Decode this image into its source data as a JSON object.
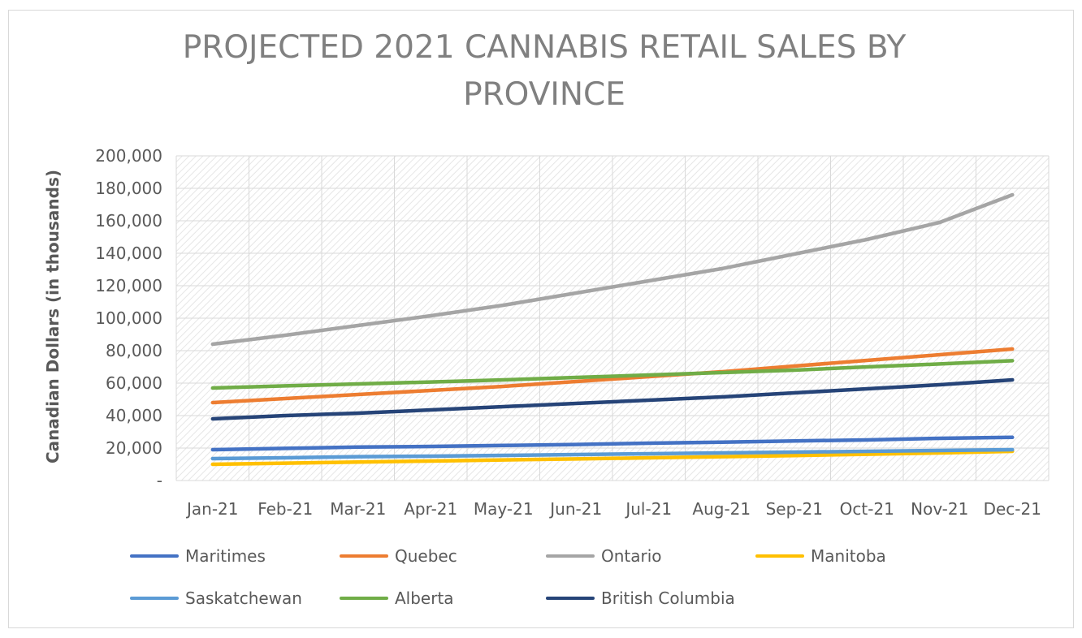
{
  "chart_data": {
    "type": "line",
    "title": "PROJECTED 2021 CANNABIS RETAIL SALES BY PROVINCE",
    "xlabel": "",
    "ylabel": "Canadian Dollars (in thousands)",
    "ylim": [
      0,
      200000
    ],
    "y_ticks": [
      0,
      20000,
      40000,
      60000,
      80000,
      100000,
      120000,
      140000,
      160000,
      180000,
      200000
    ],
    "y_tick_labels": [
      "-",
      "20,000",
      "40,000",
      "60,000",
      "80,000",
      "100,000",
      "120,000",
      "140,000",
      "160,000",
      "180,000",
      "200,000"
    ],
    "grid": true,
    "legend_position": "bottom",
    "categories": [
      "Jan-21",
      "Feb-21",
      "Mar-21",
      "Apr-21",
      "May-21",
      "Jun-21",
      "Jul-21",
      "Aug-21",
      "Sep-21",
      "Oct-21",
      "Nov-21",
      "Dec-21"
    ],
    "series": [
      {
        "name": "Maritimes",
        "color": "#4472c4",
        "values": [
          19000,
          19800,
          20600,
          21000,
          21600,
          22200,
          23000,
          23600,
          24400,
          25000,
          26000,
          26600
        ]
      },
      {
        "name": "Quebec",
        "color": "#ed7d31",
        "values": [
          48000,
          50500,
          53000,
          55500,
          58000,
          61000,
          64000,
          67000,
          70500,
          74000,
          77500,
          81000
        ]
      },
      {
        "name": "Ontario",
        "color": "#a5a5a5",
        "values": [
          84000,
          89500,
          95500,
          101500,
          108000,
          115500,
          123000,
          130500,
          139500,
          148500,
          159000,
          176000
        ]
      },
      {
        "name": "Manitoba",
        "color": "#ffc000",
        "values": [
          10000,
          10700,
          11400,
          12000,
          12700,
          13300,
          14000,
          14700,
          15400,
          16200,
          17000,
          18000
        ]
      },
      {
        "name": "Saskatchewan",
        "color": "#5b9bd5",
        "values": [
          13500,
          14000,
          14700,
          15000,
          15500,
          16000,
          16500,
          17000,
          17500,
          18000,
          18500,
          19000
        ]
      },
      {
        "name": "Alberta",
        "color": "#70ad47",
        "values": [
          57000,
          58300,
          59500,
          60700,
          62000,
          63500,
          65000,
          66500,
          68000,
          70000,
          71800,
          73800
        ]
      },
      {
        "name": "British Columbia",
        "color": "#264478",
        "values": [
          38000,
          40000,
          41500,
          43500,
          45500,
          47500,
          49500,
          51500,
          54000,
          56500,
          59000,
          62000
        ]
      }
    ]
  }
}
